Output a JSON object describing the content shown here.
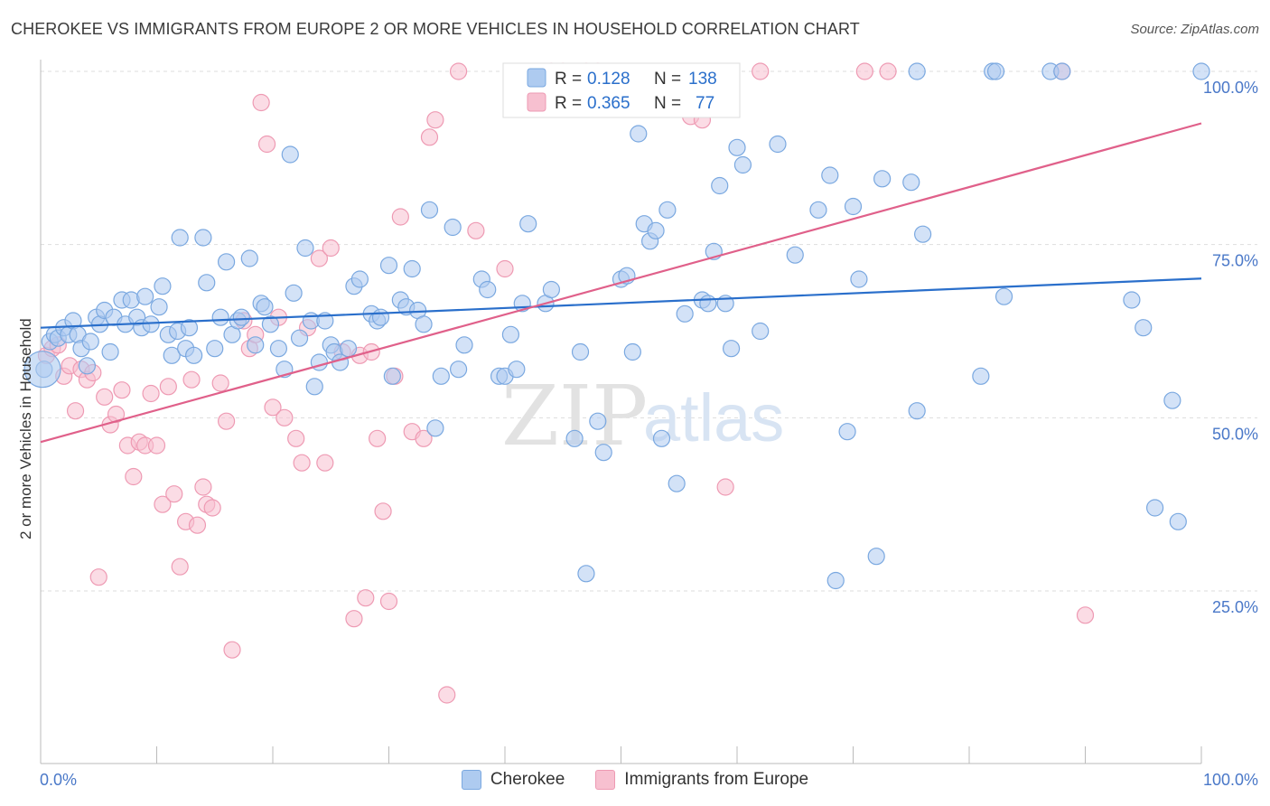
{
  "title": "CHEROKEE VS IMMIGRANTS FROM EUROPE 2 OR MORE VEHICLES IN HOUSEHOLD CORRELATION CHART",
  "source": "Source: ZipAtlas.com",
  "watermark": {
    "zip": "ZIP",
    "atlas": "atlas"
  },
  "legend": {
    "rows": [
      {
        "r_label": "R =",
        "r_value": "0.128",
        "n_label": "N =",
        "n_value": "138"
      },
      {
        "r_label": "R =",
        "r_value": "0.365",
        "n_label": "N =",
        "n_value": "77"
      }
    ]
  },
  "colors": {
    "cherokee_fill": "#aecbf0",
    "cherokee_stroke": "#7aa8e0",
    "cherokee_line": "#2a6fcb",
    "europe_fill": "#f7c0d0",
    "europe_stroke": "#ee9ab3",
    "europe_line": "#e0608a",
    "tick_text": "#4a78c8",
    "grid": "#dddddd"
  },
  "chart_data": {
    "type": "scatter",
    "title": "CHEROKEE VS IMMIGRANTS FROM EUROPE 2 OR MORE VEHICLES IN HOUSEHOLD CORRELATION CHART",
    "xlabel": "",
    "ylabel": "2 or more Vehicles in Household",
    "xlim": [
      0,
      100
    ],
    "ylim": [
      0,
      102
    ],
    "x_tick_labels": [
      "0.0%",
      "100.0%"
    ],
    "y_ticks": [
      25,
      50,
      75,
      100
    ],
    "y_tick_labels": [
      "25.0%",
      "50.0%",
      "75.0%",
      "100.0%"
    ],
    "grid": true,
    "legend_position": "top-center",
    "series": [
      {
        "name": "Cherokee",
        "R": 0.128,
        "N": 138,
        "trend": {
          "x0": 0,
          "y0": 63.0,
          "x1": 100,
          "y1": 70.1
        },
        "points": [
          [
            0.3,
            57
          ],
          [
            0.8,
            61
          ],
          [
            1.2,
            62
          ],
          [
            1.5,
            61.5
          ],
          [
            2,
            63
          ],
          [
            2.4,
            62
          ],
          [
            2.8,
            64
          ],
          [
            3.2,
            62
          ],
          [
            3.5,
            60
          ],
          [
            4,
            57.5
          ],
          [
            4.3,
            61
          ],
          [
            4.8,
            64.5
          ],
          [
            5.1,
            63.5
          ],
          [
            5.5,
            65.5
          ],
          [
            6,
            59.5
          ],
          [
            6.3,
            64.5
          ],
          [
            7,
            67
          ],
          [
            7.3,
            63.5
          ],
          [
            7.8,
            67
          ],
          [
            8.3,
            64.5
          ],
          [
            8.7,
            63
          ],
          [
            9,
            67.5
          ],
          [
            9.5,
            63.5
          ],
          [
            10.2,
            66
          ],
          [
            10.5,
            69
          ],
          [
            11,
            62
          ],
          [
            11.3,
            59
          ],
          [
            11.8,
            62.5
          ],
          [
            12,
            76
          ],
          [
            12.5,
            60
          ],
          [
            12.8,
            63
          ],
          [
            13.2,
            59
          ],
          [
            14,
            76
          ],
          [
            14.3,
            69.5
          ],
          [
            15,
            60
          ],
          [
            15.5,
            64.5
          ],
          [
            16,
            72.5
          ],
          [
            16.5,
            62
          ],
          [
            17,
            64
          ],
          [
            17.3,
            64.5
          ],
          [
            18,
            73
          ],
          [
            18.5,
            60.5
          ],
          [
            19,
            66.5
          ],
          [
            19.3,
            66
          ],
          [
            19.8,
            63.5
          ],
          [
            20.5,
            60
          ],
          [
            21,
            57
          ],
          [
            21.5,
            88
          ],
          [
            21.8,
            68
          ],
          [
            22.3,
            61.5
          ],
          [
            22.8,
            74.5
          ],
          [
            23.3,
            64
          ],
          [
            23.6,
            54.5
          ],
          [
            24,
            58
          ],
          [
            24.5,
            64
          ],
          [
            25,
            60.5
          ],
          [
            25.3,
            59.5
          ],
          [
            25.8,
            58
          ],
          [
            26.5,
            60
          ],
          [
            27,
            69
          ],
          [
            27.5,
            70
          ],
          [
            28.5,
            65
          ],
          [
            29,
            64
          ],
          [
            29.3,
            64.5
          ],
          [
            30,
            72
          ],
          [
            30.3,
            56
          ],
          [
            31,
            67
          ],
          [
            31.5,
            66
          ],
          [
            32,
            71.5
          ],
          [
            32.5,
            65.5
          ],
          [
            33,
            63.5
          ],
          [
            33.5,
            80
          ],
          [
            34,
            48.5
          ],
          [
            34.5,
            56
          ],
          [
            35.5,
            77.5
          ],
          [
            36,
            57
          ],
          [
            36.5,
            60.5
          ],
          [
            38,
            70
          ],
          [
            38.5,
            68.5
          ],
          [
            39.5,
            56
          ],
          [
            40,
            56
          ],
          [
            40.5,
            62
          ],
          [
            41,
            57
          ],
          [
            41.5,
            66.5
          ],
          [
            42,
            78
          ],
          [
            43.5,
            66.5
          ],
          [
            44,
            68.5
          ],
          [
            46,
            47
          ],
          [
            46.5,
            59.5
          ],
          [
            47,
            27.5
          ],
          [
            48,
            49.5
          ],
          [
            48.5,
            45
          ],
          [
            50,
            70
          ],
          [
            50.5,
            70.5
          ],
          [
            51,
            59.5
          ],
          [
            51.5,
            91
          ],
          [
            52,
            78
          ],
          [
            52.5,
            75.5
          ],
          [
            53,
            77
          ],
          [
            53.5,
            47
          ],
          [
            54,
            80
          ],
          [
            54.8,
            40.5
          ],
          [
            55.5,
            65
          ],
          [
            57,
            67
          ],
          [
            57.5,
            66.5
          ],
          [
            58,
            74
          ],
          [
            58.5,
            83.5
          ],
          [
            59,
            66.5
          ],
          [
            59.5,
            60
          ],
          [
            60,
            89
          ],
          [
            60.5,
            86.5
          ],
          [
            62,
            62.5
          ],
          [
            63.5,
            89.5
          ],
          [
            65,
            73.5
          ],
          [
            67,
            80
          ],
          [
            68,
            85
          ],
          [
            68.5,
            26.5
          ],
          [
            69.5,
            48
          ],
          [
            70,
            80.5
          ],
          [
            70.5,
            70
          ],
          [
            72,
            30
          ],
          [
            72.5,
            84.5
          ],
          [
            75,
            84
          ],
          [
            75.5,
            51
          ],
          [
            76,
            76.5
          ],
          [
            81,
            56
          ],
          [
            82,
            100
          ],
          [
            82.3,
            100
          ],
          [
            83,
            67.5
          ],
          [
            87,
            100
          ],
          [
            88,
            100
          ],
          [
            95,
            63
          ],
          [
            97.5,
            52.5
          ],
          [
            100,
            100
          ],
          [
            96,
            37
          ],
          [
            98,
            35
          ],
          [
            94,
            67
          ],
          [
            75.5,
            100
          ]
        ]
      },
      {
        "name": "Immigrants from Europe",
        "R": 0.365,
        "N": 77,
        "trend": {
          "x0": 0,
          "y0": 46.5,
          "x1": 100,
          "y1": 92.5
        },
        "points": [
          [
            0.5,
            59
          ],
          [
            1,
            60
          ],
          [
            1.5,
            60.5
          ],
          [
            2,
            56
          ],
          [
            2.5,
            57.5
          ],
          [
            3,
            51
          ],
          [
            3.5,
            57
          ],
          [
            4,
            55.5
          ],
          [
            4.5,
            56.5
          ],
          [
            5,
            27
          ],
          [
            5.5,
            53
          ],
          [
            6,
            49
          ],
          [
            6.5,
            50.5
          ],
          [
            7,
            54
          ],
          [
            7.5,
            46
          ],
          [
            8,
            41.5
          ],
          [
            8.5,
            46.5
          ],
          [
            9,
            46
          ],
          [
            9.5,
            53.5
          ],
          [
            10,
            46
          ],
          [
            10.5,
            37.5
          ],
          [
            11,
            54.5
          ],
          [
            11.5,
            39
          ],
          [
            12,
            28.5
          ],
          [
            12.5,
            35
          ],
          [
            13,
            55.5
          ],
          [
            13.5,
            34.5
          ],
          [
            14,
            40
          ],
          [
            14.3,
            37.5
          ],
          [
            14.8,
            37
          ],
          [
            15.5,
            55
          ],
          [
            16,
            49.5
          ],
          [
            16.5,
            16.5
          ],
          [
            17.5,
            64
          ],
          [
            18,
            60
          ],
          [
            18.5,
            62
          ],
          [
            19,
            95.5
          ],
          [
            19.5,
            89.5
          ],
          [
            20,
            51.5
          ],
          [
            20.5,
            64.5
          ],
          [
            21,
            50
          ],
          [
            22,
            47
          ],
          [
            22.5,
            43.5
          ],
          [
            23,
            63
          ],
          [
            24,
            73
          ],
          [
            24.5,
            43.5
          ],
          [
            25,
            74.5
          ],
          [
            26,
            59.5
          ],
          [
            27,
            21
          ],
          [
            27.5,
            59
          ],
          [
            28,
            24
          ],
          [
            28.5,
            59.5
          ],
          [
            29,
            47
          ],
          [
            29.5,
            36.5
          ],
          [
            30,
            23.5
          ],
          [
            30.5,
            56
          ],
          [
            31,
            79
          ],
          [
            32,
            48
          ],
          [
            33,
            47
          ],
          [
            33.5,
            90.5
          ],
          [
            34,
            93
          ],
          [
            35,
            10
          ],
          [
            36,
            100
          ],
          [
            37.5,
            77
          ],
          [
            40,
            71.5
          ],
          [
            44,
            100
          ],
          [
            45,
            100
          ],
          [
            47,
            100
          ],
          [
            48,
            100
          ],
          [
            56,
            93.5
          ],
          [
            57,
            93
          ],
          [
            59,
            40
          ],
          [
            62,
            100
          ],
          [
            71,
            100
          ],
          [
            73,
            100
          ],
          [
            90,
            21.5
          ],
          [
            88,
            100
          ]
        ]
      }
    ]
  }
}
